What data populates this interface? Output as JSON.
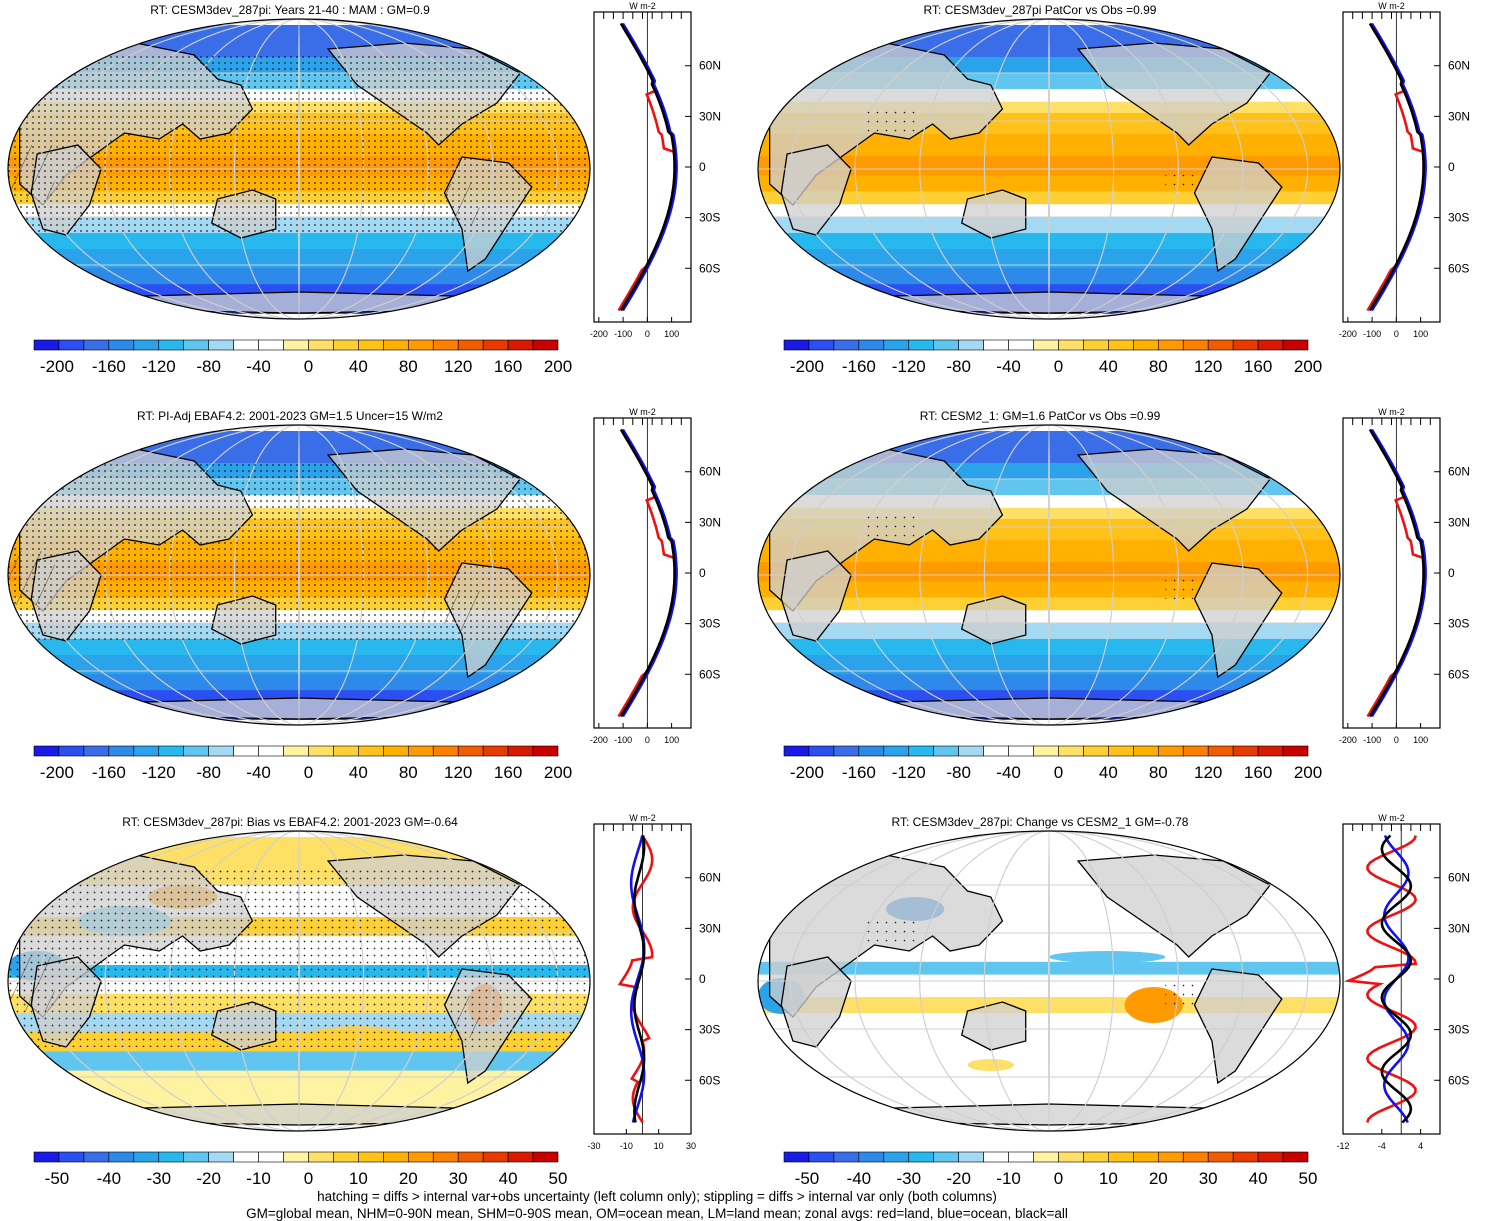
{
  "footnote": {
    "line1": "hatching = diffs > internal var+obs uncertainty (left column only); stippling = diffs > internal var only (both columns)",
    "line2": "GM=global mean, NHM=0-90N mean, SHM=0-90S mean, OM=ocean mean, LM=land mean; zonal avgs: red=land, blue=ocean, black=all"
  },
  "palettes": {
    "full": [
      "#1a1ae6",
      "#2b4ff0",
      "#3a6ee8",
      "#2d8ae8",
      "#2aa3ea",
      "#27b8ee",
      "#60c6ef",
      "#a3d9f2",
      "#ffffff",
      "#ffffff",
      "#fff2a0",
      "#ffe066",
      "#ffd033",
      "#ffc21a",
      "#ffb000",
      "#ff9a00",
      "#ff7f00",
      "#f25c00",
      "#e83a00",
      "#d91a00",
      "#c80000"
    ],
    "diff": [
      "#1a1ae6",
      "#2b4ff0",
      "#3a6ee8",
      "#2d8ae8",
      "#2aa3ea",
      "#27b8ee",
      "#60c6ef",
      "#a3d9f2",
      "#ffffff",
      "#ffffff",
      "#fff2a0",
      "#ffe066",
      "#ffd033",
      "#ffc21a",
      "#ffb000",
      "#ff9a00",
      "#ff7f00",
      "#f25c00",
      "#e83a00",
      "#d91a00",
      "#c80000"
    ],
    "land_gray": "#cfcfcf",
    "zonal_land": "#ee1111",
    "zonal_ocean": "#1111ee",
    "zonal_all": "#000000"
  },
  "panels": [
    {
      "title": "RT: CESM3dev_287pi: Years 21-40 : MAM : GM=0.9",
      "field": "full",
      "stipple": "dense",
      "hatch": true,
      "colorbar_labels": [
        "-200",
        "-160",
        "-120",
        "-80",
        "-40",
        "0",
        "40",
        "80",
        "120",
        "160",
        "200"
      ],
      "zonal": {
        "unit": "W m-2",
        "ticks": [
          "-200",
          "-100",
          "0",
          "100"
        ],
        "range": [
          -220,
          180
        ],
        "lat_labels": [
          "60N",
          "30N",
          "0",
          "30S",
          "60S"
        ],
        "scale": "full"
      }
    },
    {
      "title": "RT: CESM3dev_287pi PatCor vs Obs =0.99",
      "field": "full",
      "stipple": "sparse",
      "hatch": false,
      "colorbar_labels": [
        "-200",
        "-160",
        "-120",
        "-80",
        "-40",
        "0",
        "40",
        "80",
        "120",
        "160",
        "200"
      ],
      "zonal": {
        "unit": "W m-2",
        "ticks": [
          "-200",
          "-100",
          "0",
          "100"
        ],
        "range": [
          -220,
          180
        ],
        "lat_labels": [
          "60N",
          "30N",
          "0",
          "30S",
          "60S"
        ],
        "scale": "full"
      }
    },
    {
      "title": "RT: PI-Adj EBAF4.2: 2001-2023 GM=1.5 Uncer=15 W/m2",
      "field": "full",
      "stipple": "dense",
      "hatch": true,
      "colorbar_labels": [
        "-200",
        "-160",
        "-120",
        "-80",
        "-40",
        "0",
        "40",
        "80",
        "120",
        "160",
        "200"
      ],
      "zonal": {
        "unit": "W m-2",
        "ticks": [
          "-200",
          "-100",
          "0",
          "100"
        ],
        "range": [
          -220,
          180
        ],
        "lat_labels": [
          "60N",
          "30N",
          "0",
          "30S",
          "60S"
        ],
        "scale": "full"
      }
    },
    {
      "title": "RT: CESM2_1: GM=1.6 PatCor vs Obs =0.99",
      "field": "full",
      "stipple": "sparse",
      "hatch": false,
      "colorbar_labels": [
        "-200",
        "-160",
        "-120",
        "-80",
        "-40",
        "0",
        "40",
        "80",
        "120",
        "160",
        "200"
      ],
      "zonal": {
        "unit": "W m-2",
        "ticks": [
          "-200",
          "-100",
          "0",
          "100"
        ],
        "range": [
          -220,
          180
        ],
        "lat_labels": [
          "60N",
          "30N",
          "0",
          "30S",
          "60S"
        ],
        "scale": "full"
      }
    },
    {
      "title": "RT: CESM3dev_287pi: Bias vs EBAF4.2: 2001-2023 GM=-0.64",
      "field": "bias",
      "stipple": "medium",
      "hatch": true,
      "colorbar_labels": [
        "-50",
        "-40",
        "-30",
        "-20",
        "-10",
        "0",
        "10",
        "20",
        "30",
        "40",
        "50"
      ],
      "zonal": {
        "unit": "W m-2",
        "ticks": [
          "-30",
          "-10",
          "10",
          "30"
        ],
        "range": [
          -30,
          30
        ],
        "lat_labels": [
          "60N",
          "30N",
          "0",
          "30S",
          "60S"
        ],
        "scale": "bias"
      }
    },
    {
      "title": "RT: CESM3dev_287pi: Change vs CESM2_1 GM=-0.78",
      "field": "change",
      "stipple": "sparse",
      "hatch": false,
      "colorbar_labels": [
        "-50",
        "-40",
        "-30",
        "-20",
        "-10",
        "0",
        "10",
        "20",
        "30",
        "40",
        "50"
      ],
      "zonal": {
        "unit": "W m-2",
        "ticks": [
          "-12",
          "-4",
          "4"
        ],
        "range": [
          -12,
          8
        ],
        "lat_labels": [
          "60N",
          "30N",
          "0",
          "30S",
          "60S"
        ],
        "scale": "change"
      }
    }
  ]
}
